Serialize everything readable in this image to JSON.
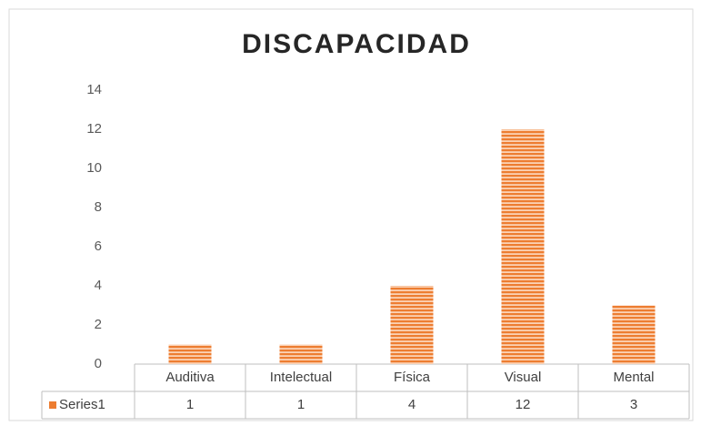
{
  "chart_data": {
    "type": "bar",
    "title": "DISCAPACIDAD",
    "categories": [
      "Auditiva",
      "Intelectual",
      "Física",
      "Visual",
      "Mental"
    ],
    "series": [
      {
        "name": "Series1",
        "color": "#ed7d31",
        "values": [
          1,
          1,
          4,
          12,
          3
        ]
      }
    ],
    "ylim": [
      0,
      14
    ],
    "yticks": [
      0,
      2,
      4,
      6,
      8,
      10,
      12,
      14
    ],
    "grid": false,
    "data_table": true
  }
}
